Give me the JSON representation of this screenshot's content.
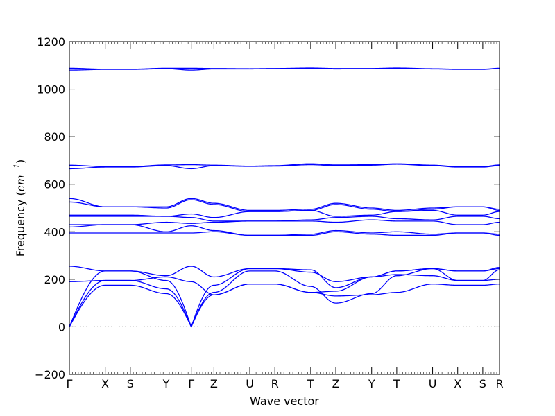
{
  "chart_data": {
    "type": "line",
    "title": "",
    "xlabel": "Wave vector",
    "ylabel": {
      "prefix": "Frequency (",
      "unit": "cm",
      "exponent": "−1",
      "suffix": ")"
    },
    "ylim": [
      -200,
      1200
    ],
    "yticks": [
      -200,
      0,
      200,
      400,
      600,
      800,
      1000,
      1200
    ],
    "xlim": [
      0,
      18
    ],
    "grid": false,
    "legend": "none",
    "line_color": "#0000ff",
    "zero_line": {
      "y": 0,
      "style": "dotted",
      "color": "#000000"
    },
    "k_points": [
      {
        "label": "Γ",
        "x": 0
      },
      {
        "label": "X",
        "x": 1.5
      },
      {
        "label": "S",
        "x": 2.55
      },
      {
        "label": "Y",
        "x": 4.05
      },
      {
        "label": "Γ",
        "x": 5.1
      },
      {
        "label": "Z",
        "x": 6.05
      },
      {
        "label": "U",
        "x": 7.55
      },
      {
        "label": "R",
        "x": 8.6
      },
      {
        "label": "T",
        "x": 10.1
      },
      {
        "label": "Z",
        "x": 11.15
      },
      {
        "label": "Y",
        "x": 12.65
      },
      {
        "label": "T",
        "x": 13.7
      },
      {
        "label": "U",
        "x": 15.2
      },
      {
        "label": "X",
        "x": 16.25
      },
      {
        "label": "S",
        "x": 17.3
      },
      {
        "label": "R",
        "x": 18
      }
    ],
    "series": [
      {
        "x": [
          0,
          1.5,
          2.55,
          4.05,
          5.1,
          6.05,
          7.55,
          8.6,
          10.1,
          11.15,
          12.65,
          13.7,
          15.2,
          16.25,
          17.3,
          18
        ],
        "y": [
          0,
          175,
          175,
          140,
          0,
          135,
          180,
          180,
          145,
          130,
          135,
          145,
          180,
          175,
          175,
          180
        ],
        "curve": "sqrt"
      },
      {
        "x": [
          0,
          1.5,
          2.55,
          4.05,
          5.1,
          6.05,
          7.55,
          8.6,
          10.1,
          11.15,
          12.65,
          13.7,
          15.2,
          16.25,
          17.3,
          18
        ],
        "y": [
          0,
          195,
          195,
          160,
          0,
          145,
          235,
          235,
          170,
          100,
          140,
          215,
          245,
          195,
          195,
          240
        ],
        "curve": "sqrt"
      },
      {
        "x": [
          0,
          1.5,
          2.55,
          4.05,
          5.1,
          6.05,
          7.55,
          8.6,
          10.1,
          11.15,
          12.65,
          13.7,
          15.2,
          16.25,
          17.3,
          18
        ],
        "y": [
          0,
          235,
          235,
          195,
          0,
          175,
          245,
          245,
          240,
          165,
          210,
          235,
          245,
          235,
          235,
          245
        ],
        "curve": "sqrt"
      },
      {
        "x": [
          0,
          1.5,
          2.55,
          4.05,
          5.1,
          6.05,
          7.55,
          8.6,
          10.1,
          11.15,
          12.65,
          13.7,
          15.2,
          16.25,
          17.3,
          18
        ],
        "y": [
          190,
          195,
          195,
          210,
          190,
          135,
          180,
          180,
          145,
          150,
          210,
          220,
          215,
          195,
          195,
          200
        ],
        "curve": "smooth"
      },
      {
        "x": [
          0,
          1.5,
          2.55,
          4.05,
          5.1,
          6.05,
          7.55,
          8.6,
          10.1,
          11.15,
          12.65,
          13.7,
          15.2,
          16.25,
          17.3,
          18
        ],
        "y": [
          255,
          235,
          235,
          215,
          255,
          210,
          245,
          245,
          230,
          190,
          210,
          235,
          245,
          235,
          235,
          250
        ],
        "curve": "smooth"
      },
      {
        "x": [
          0,
          1.5,
          2.55,
          4.05,
          5.1,
          6.05,
          7.55,
          8.6,
          10.1,
          11.15,
          12.65,
          13.7,
          15.2,
          16.25,
          17.3,
          18
        ],
        "y": [
          395,
          395,
          395,
          395,
          395,
          400,
          385,
          385,
          385,
          400,
          390,
          385,
          385,
          395,
          395,
          385
        ],
        "curve": "smooth"
      },
      {
        "x": [
          0,
          1.5,
          2.55,
          4.05,
          5.1,
          6.05,
          7.55,
          8.6,
          10.1,
          11.15,
          12.65,
          13.7,
          15.2,
          16.25,
          17.3,
          18
        ],
        "y": [
          420,
          430,
          430,
          400,
          425,
          405,
          385,
          385,
          390,
          405,
          395,
          400,
          390,
          395,
          395,
          390
        ],
        "curve": "smooth"
      },
      {
        "x": [
          0,
          1.5,
          2.55,
          4.05,
          5.1,
          6.05,
          7.55,
          8.6,
          10.1,
          11.15,
          12.65,
          13.7,
          15.2,
          16.25,
          17.3,
          18
        ],
        "y": [
          430,
          430,
          430,
          440,
          435,
          440,
          445,
          445,
          445,
          440,
          450,
          445,
          445,
          430,
          430,
          440
        ],
        "curve": "smooth"
      },
      {
        "x": [
          0,
          1.5,
          2.55,
          4.05,
          5.1,
          6.05,
          7.55,
          8.6,
          10.1,
          11.15,
          12.65,
          13.7,
          15.2,
          16.25,
          17.3,
          18
        ],
        "y": [
          465,
          465,
          465,
          465,
          460,
          445,
          445,
          445,
          450,
          460,
          465,
          455,
          450,
          465,
          465,
          455
        ],
        "curve": "smooth"
      },
      {
        "x": [
          0,
          1.5,
          2.55,
          4.05,
          5.1,
          6.05,
          7.55,
          8.6,
          10.1,
          11.15,
          12.65,
          13.7,
          15.2,
          16.25,
          17.3,
          18
        ],
        "y": [
          470,
          470,
          470,
          465,
          475,
          460,
          485,
          485,
          490,
          465,
          470,
          485,
          490,
          470,
          470,
          485
        ],
        "curve": "smooth"
      },
      {
        "x": [
          0,
          1.5,
          2.55,
          4.05,
          5.1,
          6.05,
          7.55,
          8.6,
          10.1,
          11.15,
          12.65,
          13.7,
          15.2,
          16.25,
          17.3,
          18
        ],
        "y": [
          525,
          505,
          505,
          500,
          535,
          515,
          485,
          485,
          490,
          515,
          495,
          485,
          495,
          505,
          505,
          490
        ],
        "curve": "smooth"
      },
      {
        "x": [
          0,
          1.5,
          2.55,
          4.05,
          5.1,
          6.05,
          7.55,
          8.6,
          10.1,
          11.15,
          12.65,
          13.7,
          15.2,
          16.25,
          17.3,
          18
        ],
        "y": [
          540,
          505,
          505,
          505,
          540,
          520,
          490,
          490,
          495,
          520,
          500,
          490,
          500,
          505,
          505,
          495
        ],
        "curve": "smooth"
      },
      {
        "x": [
          0,
          1.5,
          2.55,
          4.05,
          5.1,
          6.05,
          7.55,
          8.6,
          10.1,
          11.15,
          12.65,
          13.7,
          15.2,
          16.25,
          17.3,
          18
        ],
        "y": [
          665,
          672,
          672,
          678,
          665,
          678,
          675,
          676,
          682,
          678,
          680,
          684,
          678,
          672,
          672,
          678
        ],
        "curve": "smooth"
      },
      {
        "x": [
          0,
          1.5,
          2.55,
          4.05,
          5.1,
          6.05,
          7.55,
          8.6,
          10.1,
          11.15,
          12.65,
          13.7,
          15.2,
          16.25,
          17.3,
          18
        ],
        "y": [
          680,
          674,
          674,
          681,
          682,
          680,
          676,
          678,
          686,
          681,
          682,
          686,
          680,
          674,
          674,
          681
        ],
        "curve": "smooth"
      },
      {
        "x": [
          0,
          1.5,
          2.55,
          4.05,
          5.1,
          6.05,
          7.55,
          8.6,
          10.1,
          11.15,
          12.65,
          13.7,
          15.2,
          16.25,
          17.3,
          18
        ],
        "y": [
          1080,
          1083,
          1083,
          1086,
          1080,
          1085,
          1085,
          1086,
          1087,
          1085,
          1086,
          1088,
          1085,
          1083,
          1083,
          1087
        ],
        "curve": "smooth"
      },
      {
        "x": [
          0,
          1.5,
          2.55,
          4.05,
          5.1,
          6.05,
          7.55,
          8.6,
          10.1,
          11.15,
          12.65,
          13.7,
          15.2,
          16.25,
          17.3,
          18
        ],
        "y": [
          1088,
          1084,
          1084,
          1088,
          1088,
          1087,
          1086,
          1087,
          1089,
          1087,
          1087,
          1089,
          1086,
          1084,
          1084,
          1088
        ],
        "curve": "smooth"
      }
    ]
  }
}
